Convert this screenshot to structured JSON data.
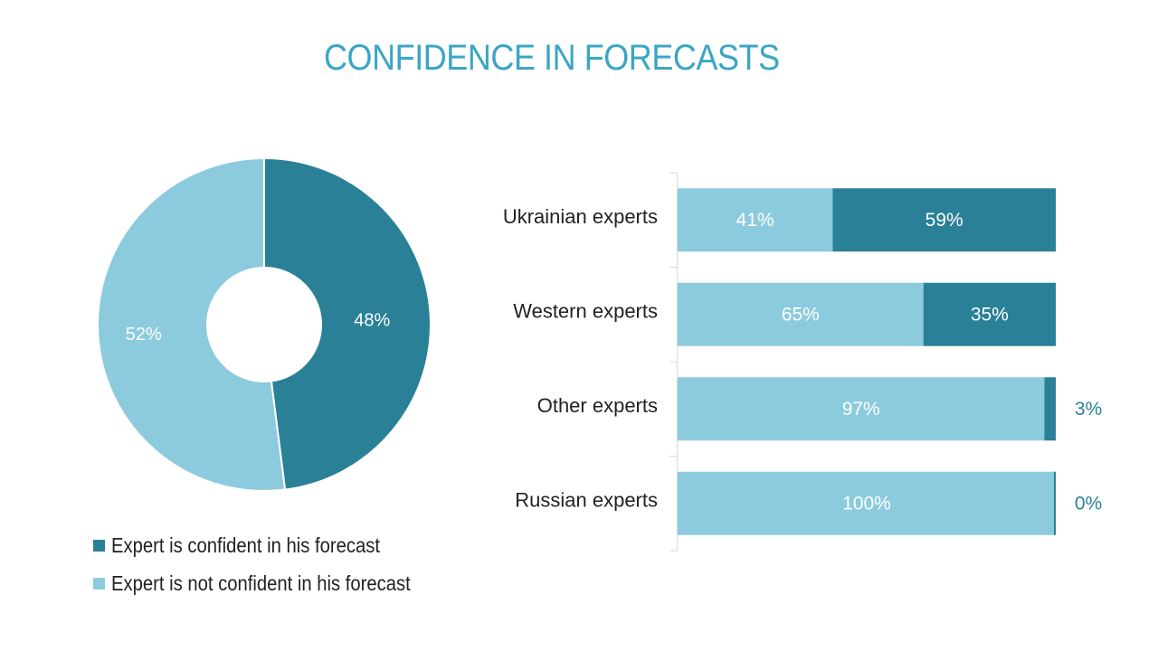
{
  "title": "CONFIDENCE IN FORECASTS",
  "colors": {
    "title": "#3aa6c4",
    "confident": "#2a8097",
    "not_confident": "#8ccbdd",
    "axis": "#d9d9d9",
    "category_text": "#222222",
    "outside_label": "#2a8097"
  },
  "legend": {
    "confident": "Expert is confident in his forecast",
    "not_confident": "Expert is not confident in his forecast"
  },
  "chart_data": [
    {
      "type": "pie",
      "subtype": "donut",
      "slices": [
        {
          "key": "confident",
          "value": 48,
          "label": "48%"
        },
        {
          "key": "not_confident",
          "value": 52,
          "label": "52%"
        }
      ]
    },
    {
      "type": "bar",
      "orientation": "horizontal",
      "stacked": true,
      "categories": [
        "Ukrainian experts",
        "Western experts",
        "Other experts",
        "Russian experts"
      ],
      "series": [
        {
          "key": "not_confident",
          "name": "Expert is not confident in his forecast",
          "values": [
            41,
            65,
            97,
            100
          ],
          "labels": [
            "41%",
            "65%",
            "97%",
            "100%"
          ]
        },
        {
          "key": "confident",
          "name": "Expert is confident in his forecast",
          "values": [
            59,
            35,
            3,
            0
          ],
          "labels": [
            "59%",
            "35%",
            "3%",
            "0%"
          ]
        }
      ],
      "xlim": [
        0,
        100
      ]
    }
  ]
}
